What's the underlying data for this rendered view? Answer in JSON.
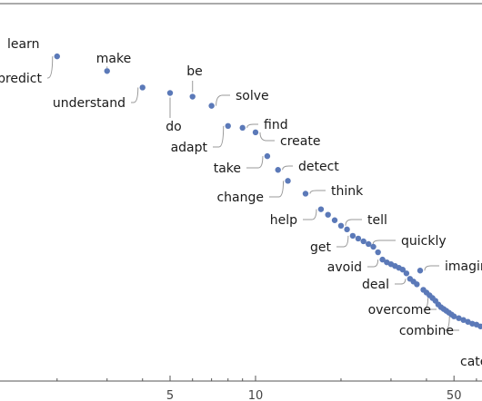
{
  "chart_data": {
    "type": "scatter",
    "title": "",
    "xlabel": "",
    "ylabel": "",
    "x_scale": "log",
    "x_ticks": [
      5,
      10,
      50
    ],
    "x_tick_labels": [
      "5",
      "10",
      "50"
    ],
    "marker_color": "#5b79b8",
    "labeled_points": [
      {
        "label": "learn",
        "x": 1,
        "y": 1.0
      },
      {
        "label": "predict",
        "x": 2,
        "y": 0.985
      },
      {
        "label": "make",
        "x": 3,
        "y": 0.969
      },
      {
        "label": "understand",
        "x": 4,
        "y": 0.951
      },
      {
        "label": "do",
        "x": 5,
        "y": 0.945
      },
      {
        "label": "be",
        "x": 6,
        "y": 0.941
      },
      {
        "label": "solve",
        "x": 7,
        "y": 0.931
      },
      {
        "label": "adapt",
        "x": 8,
        "y": 0.909
      },
      {
        "label": "find",
        "x": 9,
        "y": 0.907
      },
      {
        "label": "create",
        "x": 10,
        "y": 0.902
      },
      {
        "label": "take",
        "x": 11,
        "y": 0.876
      },
      {
        "label": "detect",
        "x": 12,
        "y": 0.861
      },
      {
        "label": "change",
        "x": 13,
        "y": 0.849
      },
      {
        "label": "think",
        "x": 15,
        "y": 0.835
      },
      {
        "label": "help",
        "x": 17,
        "y": 0.818
      },
      {
        "label": "tell",
        "x": 20,
        "y": 0.8
      },
      {
        "label": "get",
        "x": 22,
        "y": 0.789
      },
      {
        "label": "quickly",
        "x": 25,
        "y": 0.78
      },
      {
        "label": "avoid",
        "x": 28,
        "y": 0.763
      },
      {
        "label": "imagine",
        "x": 38,
        "y": 0.751
      },
      {
        "label": "deal",
        "x": 35,
        "y": 0.742
      },
      {
        "label": "overcome",
        "x": 42,
        "y": 0.721
      },
      {
        "label": "combine",
        "x": 50,
        "y": 0.701
      },
      {
        "label": "categorize",
        "x": 70,
        "y": 0.68
      }
    ],
    "unlabeled_points": [
      {
        "x": 18,
        "y": 0.812
      },
      {
        "x": 19,
        "y": 0.806
      },
      {
        "x": 21,
        "y": 0.796
      },
      {
        "x": 23,
        "y": 0.786
      },
      {
        "x": 24,
        "y": 0.783
      },
      {
        "x": 26,
        "y": 0.777
      },
      {
        "x": 27,
        "y": 0.771
      },
      {
        "x": 29,
        "y": 0.76
      },
      {
        "x": 30,
        "y": 0.758
      },
      {
        "x": 31,
        "y": 0.756
      },
      {
        "x": 32,
        "y": 0.754
      },
      {
        "x": 33,
        "y": 0.752
      },
      {
        "x": 34,
        "y": 0.748
      },
      {
        "x": 36,
        "y": 0.739
      },
      {
        "x": 37,
        "y": 0.736
      },
      {
        "x": 39,
        "y": 0.73
      },
      {
        "x": 40,
        "y": 0.727
      },
      {
        "x": 41,
        "y": 0.724
      },
      {
        "x": 43,
        "y": 0.718
      },
      {
        "x": 44,
        "y": 0.714
      },
      {
        "x": 45,
        "y": 0.711
      },
      {
        "x": 46,
        "y": 0.709
      },
      {
        "x": 47,
        "y": 0.707
      },
      {
        "x": 48,
        "y": 0.705
      },
      {
        "x": 49,
        "y": 0.703
      },
      {
        "x": 52,
        "y": 0.699
      },
      {
        "x": 54,
        "y": 0.697
      },
      {
        "x": 56,
        "y": 0.695
      },
      {
        "x": 58,
        "y": 0.693
      },
      {
        "x": 60,
        "y": 0.692
      },
      {
        "x": 62,
        "y": 0.69
      }
    ]
  }
}
